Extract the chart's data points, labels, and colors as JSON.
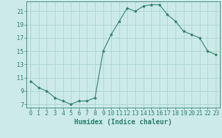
{
  "x": [
    0,
    1,
    2,
    3,
    4,
    5,
    6,
    7,
    8,
    9,
    10,
    11,
    12,
    13,
    14,
    15,
    16,
    17,
    18,
    19,
    20,
    21,
    22,
    23
  ],
  "y": [
    10.5,
    9.5,
    9.0,
    8.0,
    7.5,
    7.0,
    7.5,
    7.5,
    8.0,
    15.0,
    17.5,
    19.5,
    21.5,
    21.0,
    21.8,
    22.0,
    22.0,
    20.5,
    19.5,
    18.0,
    17.5,
    17.0,
    15.0,
    14.5
  ],
  "line_color": "#2a7d6e",
  "marker": "*",
  "marker_size": 3,
  "bg_color": "#cceae7",
  "grid_color": "#aad4d0",
  "xlabel": "Humidex (Indice chaleur)",
  "xlim": [
    -0.5,
    23.5
  ],
  "ylim": [
    6.5,
    22.5
  ],
  "yticks": [
    7,
    9,
    11,
    13,
    15,
    17,
    19,
    21
  ],
  "xticks": [
    0,
    1,
    2,
    3,
    4,
    5,
    6,
    7,
    8,
    9,
    10,
    11,
    12,
    13,
    14,
    15,
    16,
    17,
    18,
    19,
    20,
    21,
    22,
    23
  ],
  "tick_color": "#2a7d6e",
  "label_fontsize": 7,
  "tick_fontsize": 6
}
